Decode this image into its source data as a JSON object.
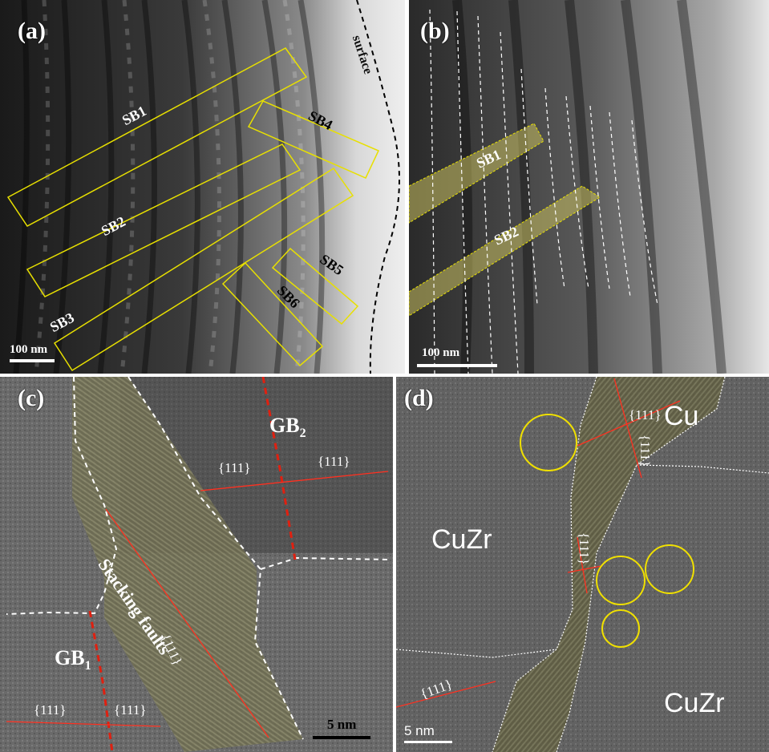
{
  "panels": {
    "a": {
      "label": "(a)",
      "surface": "surface",
      "bands": [
        "SB1",
        "SB2",
        "SB3",
        "SB4",
        "SB5",
        "SB6"
      ],
      "scale": "100 nm"
    },
    "b": {
      "label": "(b)",
      "bands": [
        "SB1",
        "SB2"
      ],
      "scale": "100 nm"
    },
    "c": {
      "label": "(c)",
      "gb2": "GB",
      "gb2_sub": "2",
      "gb1": "GB",
      "gb1_sub": "1",
      "stacking": "Stacking faults",
      "plane": "{111}",
      "scale": "5 nm"
    },
    "d": {
      "label": "(d)",
      "phase_cu": "Cu",
      "phase_cuzr": "CuZr",
      "plane": "{111}",
      "scale": "5 nm"
    }
  },
  "colors": {
    "box": "#e8e000",
    "fill": "#c8c060",
    "gb": "#e02010",
    "plane_line": "#ff3020",
    "circle": "#f0e000"
  }
}
